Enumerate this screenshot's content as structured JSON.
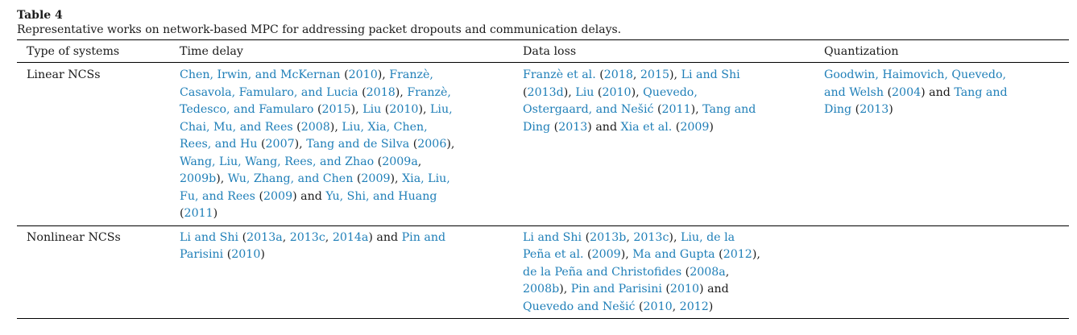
{
  "table_label": "Table 4",
  "caption": "Representative works on network-based MPC for addressing packet dropouts and communication delays.",
  "headers": [
    "Type of systems",
    "Time delay",
    "Data loss",
    "Quantization"
  ],
  "rows": [
    {
      "type": "Linear NCSs",
      "time_delay": [
        {
          "t": "Chen, Irwin, and McKernan",
          "l": true
        },
        {
          "t": " (",
          "l": false
        },
        {
          "t": "2010",
          "l": true
        },
        {
          "t": "), ",
          "l": false
        },
        {
          "t": "Franzè, Casavola, Famularo, and Lucia",
          "l": true
        },
        {
          "t": " (",
          "l": false
        },
        {
          "t": "2018",
          "l": true
        },
        {
          "t": "), ",
          "l": false
        },
        {
          "t": "Franzè, Tedesco, and Famularo",
          "l": true
        },
        {
          "t": " (",
          "l": false
        },
        {
          "t": "2015",
          "l": true
        },
        {
          "t": "), ",
          "l": false
        },
        {
          "t": "Liu",
          "l": true
        },
        {
          "t": " (",
          "l": false
        },
        {
          "t": "2010",
          "l": true
        },
        {
          "t": "), ",
          "l": false
        },
        {
          "t": "Liu, Chai, Mu, and Rees",
          "l": true
        },
        {
          "t": " (",
          "l": false
        },
        {
          "t": "2008",
          "l": true
        },
        {
          "t": "), ",
          "l": false
        },
        {
          "t": "Liu, Xia, Chen, Rees, and Hu",
          "l": true
        },
        {
          "t": " (",
          "l": false
        },
        {
          "t": "2007",
          "l": true
        },
        {
          "t": "), ",
          "l": false
        },
        {
          "t": "Tang and de Silva",
          "l": true
        },
        {
          "t": " (",
          "l": false
        },
        {
          "t": "2006",
          "l": true
        },
        {
          "t": "), ",
          "l": false
        },
        {
          "t": "Wang, Liu, Wang, Rees, and Zhao",
          "l": true
        },
        {
          "t": " (",
          "l": false
        },
        {
          "t": "2009a",
          "l": true
        },
        {
          "t": ", ",
          "l": false
        },
        {
          "t": "2009b",
          "l": true
        },
        {
          "t": "), ",
          "l": false
        },
        {
          "t": "Wu, Zhang, and Chen",
          "l": true
        },
        {
          "t": " (",
          "l": false
        },
        {
          "t": "2009",
          "l": true
        },
        {
          "t": "), ",
          "l": false
        },
        {
          "t": "Xia, Liu, Fu, and Rees",
          "l": true
        },
        {
          "t": " (",
          "l": false
        },
        {
          "t": "2009",
          "l": true
        },
        {
          "t": ") and ",
          "l": false
        },
        {
          "t": "Yu, Shi, and Huang",
          "l": true
        },
        {
          "t": " (",
          "l": false
        },
        {
          "t": "2011",
          "l": true
        },
        {
          "t": ")",
          "l": false
        }
      ],
      "data_loss": [
        {
          "t": "Franzè et al.",
          "l": true
        },
        {
          "t": " (",
          "l": false
        },
        {
          "t": "2018",
          "l": true
        },
        {
          "t": ", ",
          "l": false
        },
        {
          "t": "2015",
          "l": true
        },
        {
          "t": "), ",
          "l": false
        },
        {
          "t": "Li and Shi",
          "l": true
        },
        {
          "t": " (",
          "l": false
        },
        {
          "t": "2013d",
          "l": true
        },
        {
          "t": "), ",
          "l": false
        },
        {
          "t": "Liu",
          "l": true
        },
        {
          "t": " (",
          "l": false
        },
        {
          "t": "2010",
          "l": true
        },
        {
          "t": "), ",
          "l": false
        },
        {
          "t": "Quevedo, Ostergaard, and Nešić",
          "l": true
        },
        {
          "t": " (",
          "l": false
        },
        {
          "t": "2011",
          "l": true
        },
        {
          "t": "), ",
          "l": false
        },
        {
          "t": "Tang and Ding",
          "l": true
        },
        {
          "t": " (",
          "l": false
        },
        {
          "t": "2013",
          "l": true
        },
        {
          "t": ") and ",
          "l": false
        },
        {
          "t": "Xia et al.",
          "l": true
        },
        {
          "t": " (",
          "l": false
        },
        {
          "t": "2009",
          "l": true
        },
        {
          "t": ")",
          "l": false
        }
      ],
      "quantization": [
        {
          "t": "Goodwin, Haimovich, Quevedo, and Welsh",
          "l": true
        },
        {
          "t": " (",
          "l": false
        },
        {
          "t": "2004",
          "l": true
        },
        {
          "t": ") and ",
          "l": false
        },
        {
          "t": "Tang and Ding",
          "l": true
        },
        {
          "t": " (",
          "l": false
        },
        {
          "t": "2013",
          "l": true
        },
        {
          "t": ")",
          "l": false
        }
      ]
    },
    {
      "type": "Nonlinear NCSs",
      "time_delay": [
        {
          "t": "Li and Shi",
          "l": true
        },
        {
          "t": " (",
          "l": false
        },
        {
          "t": "2013a",
          "l": true
        },
        {
          "t": ", ",
          "l": false
        },
        {
          "t": "2013c",
          "l": true
        },
        {
          "t": ", ",
          "l": false
        },
        {
          "t": "2014a",
          "l": true
        },
        {
          "t": ") and ",
          "l": false
        },
        {
          "t": "Pin and Parisini",
          "l": true
        },
        {
          "t": " (",
          "l": false
        },
        {
          "t": "2010",
          "l": true
        },
        {
          "t": ")",
          "l": false
        }
      ],
      "data_loss": [
        {
          "t": "Li and Shi",
          "l": true
        },
        {
          "t": " (",
          "l": false
        },
        {
          "t": "2013b",
          "l": true
        },
        {
          "t": ", ",
          "l": false
        },
        {
          "t": "2013c",
          "l": true
        },
        {
          "t": "), ",
          "l": false
        },
        {
          "t": "Liu, de la Peña et al.",
          "l": true
        },
        {
          "t": " (",
          "l": false
        },
        {
          "t": "2009",
          "l": true
        },
        {
          "t": "), ",
          "l": false
        },
        {
          "t": "Ma and Gupta",
          "l": true
        },
        {
          "t": " (",
          "l": false
        },
        {
          "t": "2012",
          "l": true
        },
        {
          "t": "), ",
          "l": false
        },
        {
          "t": "de la Peña and Christofides",
          "l": true
        },
        {
          "t": " (",
          "l": false
        },
        {
          "t": "2008a",
          "l": true
        },
        {
          "t": ", ",
          "l": false
        },
        {
          "t": "2008b",
          "l": true
        },
        {
          "t": "), ",
          "l": false
        },
        {
          "t": "Pin and Parisini",
          "l": true
        },
        {
          "t": " (",
          "l": false
        },
        {
          "t": "2010",
          "l": true
        },
        {
          "t": ") and ",
          "l": false
        },
        {
          "t": "Quevedo and Nešić",
          "l": true
        },
        {
          "t": " (",
          "l": false
        },
        {
          "t": "2010",
          "l": true
        },
        {
          "t": ", ",
          "l": false
        },
        {
          "t": "2012",
          "l": true
        },
        {
          "t": ")",
          "l": false
        }
      ],
      "quantization": []
    }
  ],
  "colors": {
    "link": "#1f7fb8",
    "text": "#1a1a1a",
    "rule": "#000000"
  }
}
